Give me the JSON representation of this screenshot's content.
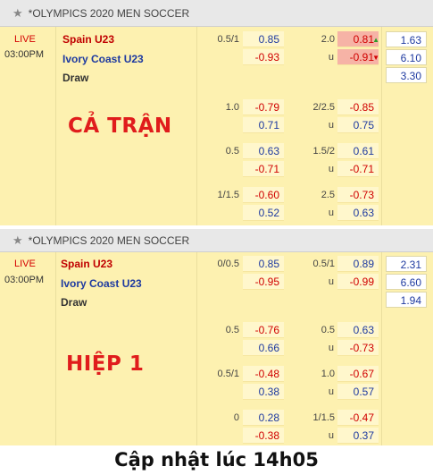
{
  "panels": [
    {
      "league": "*OLYMPICS 2020 MEN SOCCER",
      "status": "LIVE",
      "time": "03:00PM",
      "home": "Spain U23",
      "away": "Ivory Coast U23",
      "draw": "Draw",
      "overlay": "CẢ TRẬN",
      "rows": [
        {
          "hcp_line": "0.5/1",
          "hcp_home": "0.85",
          "hcp_away": "-0.93",
          "ou_line": "2.0",
          "ou_over": "0.81",
          "ou_under": "-0.91",
          "ou_u": "u",
          "x1": "1.63",
          "x2": "6.10",
          "xd": "3.30",
          "over_movement": "up",
          "under_movement": "down"
        },
        {
          "hcp_line": "1.0",
          "hcp_home": "-0.79",
          "hcp_away": "0.71",
          "ou_line": "2/2.5",
          "ou_over": "-0.85",
          "ou_under": "0.75",
          "ou_u": "u"
        },
        {
          "hcp_line": "0.5",
          "hcp_home": "0.63",
          "hcp_away": "-0.71",
          "ou_line": "1.5/2",
          "ou_over": "0.61",
          "ou_under": "-0.71",
          "ou_u": "u"
        },
        {
          "hcp_line": "1/1.5",
          "hcp_home": "-0.60",
          "hcp_away": "0.52",
          "ou_line": "2.5",
          "ou_over": "-0.73",
          "ou_under": "0.63",
          "ou_u": "u"
        }
      ]
    },
    {
      "league": "*OLYMPICS 2020 MEN SOCCER",
      "status": "LIVE",
      "time": "03:00PM",
      "home": "Spain U23",
      "away": "Ivory Coast U23",
      "draw": "Draw",
      "overlay": "HIỆP 1",
      "rows": [
        {
          "hcp_line": "0/0.5",
          "hcp_home": "0.85",
          "hcp_away": "-0.95",
          "ou_line": "0.5/1",
          "ou_over": "0.89",
          "ou_under": "-0.99",
          "ou_u": "u",
          "x1": "2.31",
          "x2": "6.60",
          "xd": "1.94"
        },
        {
          "hcp_line": "0.5",
          "hcp_home": "-0.76",
          "hcp_away": "0.66",
          "ou_line": "0.5",
          "ou_over": "0.63",
          "ou_under": "-0.73",
          "ou_u": "u"
        },
        {
          "hcp_line": "0.5/1",
          "hcp_home": "-0.48",
          "hcp_away": "0.38",
          "ou_line": "1.0",
          "ou_over": "-0.67",
          "ou_under": "0.57",
          "ou_u": "u"
        },
        {
          "hcp_line": "0",
          "hcp_home": "0.28",
          "hcp_away": "-0.38",
          "ou_line": "1/1.5",
          "ou_over": "-0.47",
          "ou_under": "0.37",
          "ou_u": "u"
        }
      ]
    }
  ],
  "caption": "Cập nhật lúc 14h05",
  "icons": {
    "favorite": "star-icon"
  },
  "colors": {
    "panel_bg": "#fdf1b0",
    "header_bg": "#e8e8e8",
    "negative": "#d00000",
    "positive": "#1e3aa0",
    "highlight": "#f6b3a6",
    "overlay_red": "#e01c1c"
  }
}
